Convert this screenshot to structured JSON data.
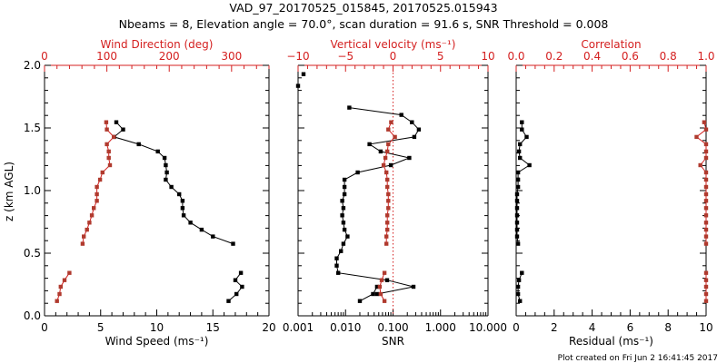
{
  "title_line1": "VAD_97_20170525_015845, 20170525.015943",
  "title_line2": "Nbeams = 8, Elevation angle = 70.0°, scan duration = 91.6 s, SNR Threshold = 0.008",
  "footer": "Plot created on Fri Jun  2 16:41:45 2017",
  "colors": {
    "primary": "#000000",
    "secondary": "#d42020",
    "secondary_marker": "#b03a2e"
  },
  "chart_data": [
    {
      "type": "line",
      "panel": "wind",
      "ylabel": "z (km AGL)",
      "ylim": [
        0.0,
        2.0
      ],
      "yticks": [
        "0.0",
        "0.5",
        "1.0",
        "1.5",
        "2.0"
      ],
      "bottom_axis": {
        "label": "Wind Speed (ms⁻¹)",
        "range": [
          0,
          20
        ],
        "ticks": [
          "0",
          "5",
          "10",
          "15",
          "20"
        ]
      },
      "top_axis": {
        "label": "Wind Direction (deg)",
        "range": [
          0,
          360
        ],
        "ticks": [
          "0",
          "100",
          "200",
          "300"
        ]
      },
      "series": [
        {
          "name": "Wind Speed",
          "axis": "bottom",
          "color": "#000000",
          "segments": [
            {
              "z": [
                1.546,
                1.488,
                1.428,
                1.37,
                1.312,
                1.261,
                1.203,
                1.145,
                1.087,
                1.029,
                0.971,
                0.918,
                0.86,
                0.802,
                0.744,
                0.688,
                0.633,
                0.575
              ],
              "values": [
                6.4,
                7.0,
                6.2,
                8.4,
                10.1,
                10.7,
                10.8,
                10.9,
                10.8,
                11.3,
                12.0,
                12.3,
                12.3,
                12.4,
                13.0,
                14.0,
                15.0,
                16.8
              ]
            },
            {
              "z": [
                0.343,
                0.285,
                0.232,
                0.174,
                0.118
              ],
              "values": [
                17.5,
                17.0,
                17.6,
                17.1,
                16.4
              ]
            }
          ]
        },
        {
          "name": "Wind Direction",
          "axis": "top",
          "color": "#d42020",
          "segments": [
            {
              "z": [
                1.546,
                1.488,
                1.428,
                1.37,
                1.312,
                1.261,
                1.203,
                1.145,
                1.087,
                1.029,
                0.971,
                0.918,
                0.86,
                0.802,
                0.744,
                0.688,
                0.633,
                0.575
              ],
              "values": [
                99,
                100,
                111,
                100,
                103,
                103,
                105,
                93,
                89,
                84,
                84,
                84,
                79,
                76,
                72,
                68,
                63,
                61
              ]
            },
            {
              "z": [
                0.343,
                0.285,
                0.232,
                0.174,
                0.118
              ],
              "values": [
                40,
                32,
                26,
                24,
                20
              ]
            }
          ]
        }
      ]
    },
    {
      "type": "line",
      "panel": "snr",
      "ylim": [
        0.0,
        2.0
      ],
      "bottom_axis": {
        "label": "SNR",
        "scale": "log",
        "range": [
          0.001,
          10
        ],
        "ticks": [
          "0.001",
          "0.010",
          "0.100",
          "1.000",
          "10.000"
        ]
      },
      "top_axis": {
        "label": "Vertical velocity (ms⁻¹)",
        "range": [
          -10,
          10
        ],
        "ticks": [
          "−10",
          "−5",
          "0",
          "5",
          "10"
        ]
      },
      "reference_line": {
        "axis": "top",
        "value": 0,
        "style": "dotted"
      },
      "series": [
        {
          "name": "SNR",
          "axis": "bottom",
          "color": "#000000",
          "segments": [
            {
              "z": [
                1.93
              ],
              "values": [
                0.0013
              ]
            },
            {
              "z": [
                1.836
              ],
              "values": [
                0.001
              ]
            },
            {
              "z": [
                1.662,
                1.604,
                1.546,
                1.488,
                1.428,
                1.37,
                1.312,
                1.261,
                1.203,
                1.145,
                1.087,
                1.029,
                0.971,
                0.918,
                0.86,
                0.802,
                0.744,
                0.688,
                0.633,
                0.575,
                0.517,
                0.459,
                0.401,
                0.343,
                0.285,
                0.232,
                0.174
              ],
              "values": [
                0.012,
                0.15,
                0.25,
                0.35,
                0.28,
                0.032,
                0.055,
                0.22,
                0.09,
                0.018,
                0.0095,
                0.0095,
                0.0095,
                0.0085,
                0.009,
                0.0085,
                0.009,
                0.0095,
                0.011,
                0.009,
                0.008,
                0.0065,
                0.0065,
                0.007,
                0.075,
                0.27,
                0.046
              ]
            },
            {
              "z": [
                0.232,
                0.174,
                0.118
              ],
              "values": [
                0.046,
                0.038,
                0.02
              ]
            }
          ]
        },
        {
          "name": "Vertical velocity",
          "axis": "top",
          "color": "#d42020",
          "segments": [
            {
              "z": [
                1.546,
                1.488,
                1.428,
                1.37,
                1.312,
                1.261,
                1.203,
                1.145,
                1.087,
                1.029,
                0.971,
                0.918,
                0.86,
                0.802,
                0.744,
                0.688,
                0.633,
                0.575
              ],
              "values": [
                -0.2,
                -0.5,
                0.2,
                -0.5,
                -0.6,
                -0.8,
                -1.0,
                -0.7,
                -0.6,
                -0.6,
                -0.5,
                -0.5,
                -0.5,
                -0.6,
                -0.6,
                -0.6,
                -0.7,
                -0.7
              ]
            },
            {
              "z": [
                0.343,
                0.285,
                0.232,
                0.174,
                0.118
              ],
              "values": [
                -0.9,
                -1.2,
                -1.4,
                -1.3,
                -0.9
              ]
            }
          ]
        }
      ]
    },
    {
      "type": "line",
      "panel": "residual",
      "ylim": [
        0.0,
        2.0
      ],
      "bottom_axis": {
        "label": "Residual (ms⁻¹)",
        "range": [
          0,
          10
        ],
        "ticks": [
          "0",
          "2",
          "4",
          "6",
          "8",
          "10"
        ]
      },
      "top_axis": {
        "label": "Correlation",
        "range": [
          0.0,
          1.0
        ],
        "ticks": [
          "0.0",
          "0.2",
          "0.4",
          "0.6",
          "0.8",
          "1.0"
        ]
      },
      "series": [
        {
          "name": "Residual",
          "axis": "bottom",
          "color": "#000000",
          "segments": [
            {
              "z": [
                1.546,
                1.488,
                1.428,
                1.37,
                1.312,
                1.261,
                1.203,
                1.145,
                1.087,
                1.029,
                0.971,
                0.918,
                0.86,
                0.802,
                0.744,
                0.688,
                0.633,
                0.575
              ],
              "values": [
                0.3,
                0.3,
                0.55,
                0.2,
                0.15,
                0.2,
                0.7,
                0.1,
                0.1,
                0.1,
                0.05,
                0.05,
                0.05,
                0.05,
                0.05,
                0.05,
                0.05,
                0.1
              ]
            },
            {
              "z": [
                0.343,
                0.285,
                0.232,
                0.174,
                0.118
              ],
              "values": [
                0.3,
                0.15,
                0.1,
                0.1,
                0.2
              ]
            }
          ]
        },
        {
          "name": "Correlation",
          "axis": "top",
          "color": "#d42020",
          "segments": [
            {
              "z": [
                1.546,
                1.488,
                1.428,
                1.37,
                1.312,
                1.261,
                1.203,
                1.145,
                1.087,
                1.029,
                0.971,
                0.918,
                0.86,
                0.802,
                0.744,
                0.688,
                0.633,
                0.575
              ],
              "values": [
                0.99,
                1.0,
                0.95,
                1.0,
                1.0,
                1.0,
                0.97,
                1.0,
                1.0,
                1.0,
                1.0,
                1.0,
                1.0,
                1.0,
                1.0,
                1.0,
                1.0,
                1.0
              ]
            },
            {
              "z": [
                0.343,
                0.285,
                0.232,
                0.174,
                0.118
              ],
              "values": [
                1.0,
                1.0,
                1.0,
                1.0,
                1.0
              ]
            }
          ]
        }
      ]
    }
  ]
}
